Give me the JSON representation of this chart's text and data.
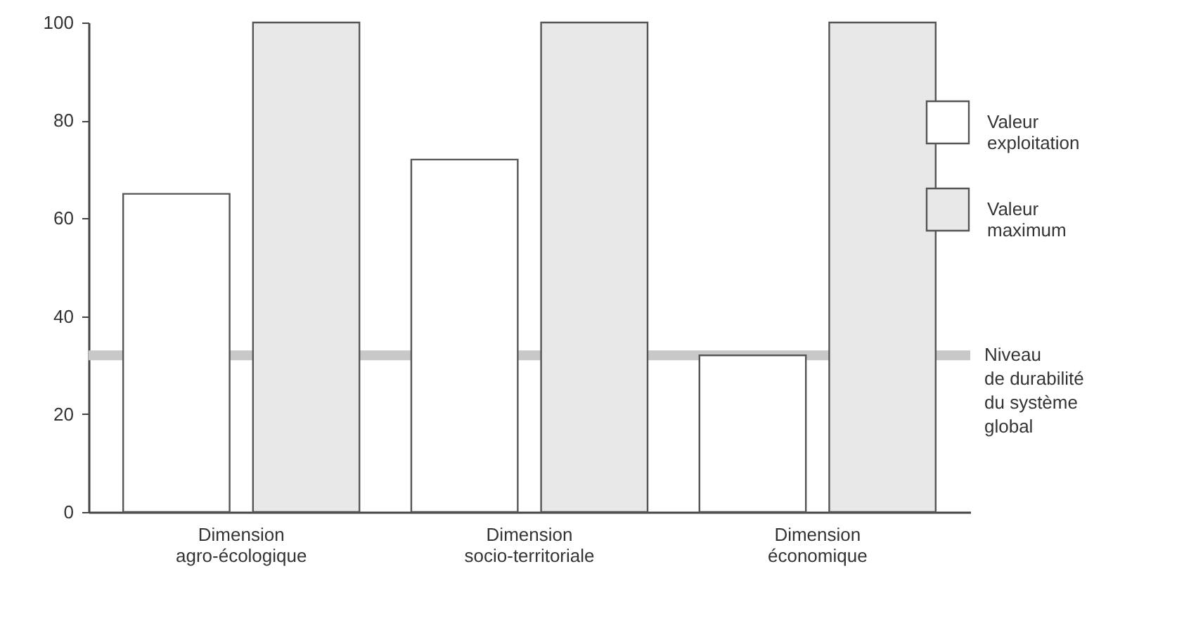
{
  "chart_data": {
    "type": "bar",
    "categories": [
      "Dimension agro-écologique",
      "Dimension socio-territoriale",
      "Dimension économique"
    ],
    "series": [
      {
        "name": "Valeur exploitation",
        "color": "#ffffff",
        "values": [
          65,
          72,
          32
        ]
      },
      {
        "name": "Valeur maximum",
        "color": "#e8e8e8",
        "values": [
          100,
          100,
          100
        ]
      }
    ],
    "ylim": [
      0,
      100
    ],
    "yticks": [
      0,
      20,
      40,
      60,
      80,
      100
    ],
    "grid": false,
    "legend": "top right",
    "ref_lines": [
      {
        "axis": "y",
        "value": 32,
        "label": "Niveau\nde durabilité\ndu système\nglobal",
        "color": "#c8c8c8"
      }
    ]
  }
}
